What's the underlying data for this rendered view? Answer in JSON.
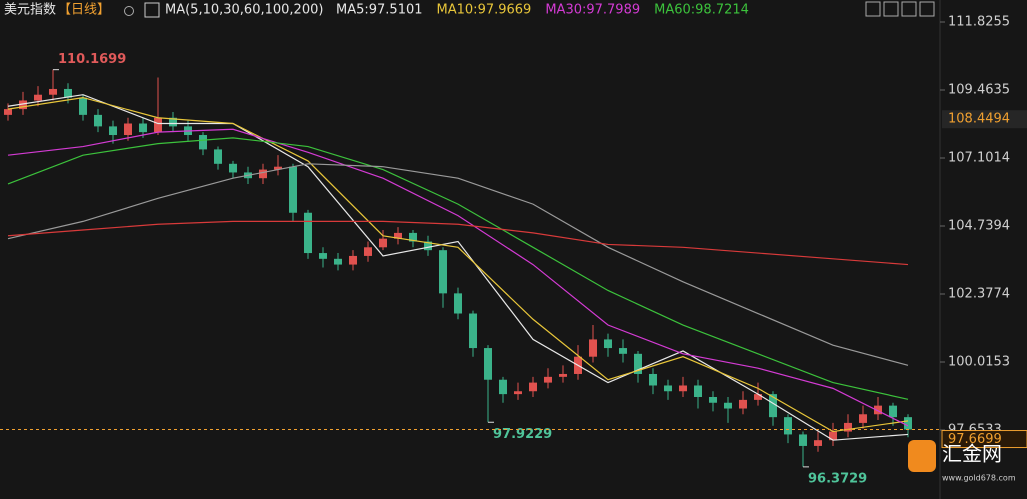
{
  "header": {
    "title": "美元指数",
    "period": "【日线】",
    "ma_params": "MA(5,10,30,60,100,200)"
  },
  "chart_data": {
    "type": "candlestick",
    "ylim": [
      95.257,
      112.59
    ],
    "yticks": [
      111.8255,
      109.4635,
      107.1014,
      104.7394,
      102.3774,
      100.0153,
      97.6533
    ],
    "up_color": "#e0524f",
    "down_color": "#3bb38a",
    "ohlc": [
      [
        108.6,
        109.0,
        108.4,
        108.8
      ],
      [
        108.8,
        109.4,
        108.6,
        109.1
      ],
      [
        109.1,
        109.6,
        108.9,
        109.3
      ],
      [
        109.3,
        110.1699,
        109.1,
        109.5
      ],
      [
        109.5,
        109.7,
        109.0,
        109.2
      ],
      [
        109.2,
        109.3,
        108.4,
        108.6
      ],
      [
        108.6,
        108.8,
        108.0,
        108.2
      ],
      [
        108.2,
        108.4,
        107.6,
        107.9
      ],
      [
        107.9,
        108.5,
        107.7,
        108.3
      ],
      [
        108.3,
        108.5,
        107.8,
        108.0
      ],
      [
        108.0,
        109.9,
        107.9,
        108.5
      ],
      [
        108.5,
        108.7,
        108.0,
        108.2
      ],
      [
        108.2,
        108.4,
        107.7,
        107.9
      ],
      [
        107.9,
        108.0,
        107.2,
        107.4
      ],
      [
        107.4,
        107.5,
        106.7,
        106.9
      ],
      [
        106.9,
        107.0,
        106.4,
        106.6
      ],
      [
        106.6,
        106.8,
        106.2,
        106.4
      ],
      [
        106.4,
        106.9,
        106.2,
        106.7
      ],
      [
        106.7,
        107.2,
        106.5,
        106.8
      ],
      [
        106.8,
        106.9,
        104.9,
        105.2
      ],
      [
        105.2,
        105.3,
        103.6,
        103.8
      ],
      [
        103.8,
        104.0,
        103.3,
        103.6
      ],
      [
        103.6,
        103.8,
        103.2,
        103.4
      ],
      [
        103.4,
        103.9,
        103.2,
        103.7
      ],
      [
        103.7,
        104.2,
        103.5,
        104.0
      ],
      [
        104.0,
        104.6,
        103.9,
        104.3
      ],
      [
        104.3,
        104.7,
        104.1,
        104.5
      ],
      [
        104.5,
        104.6,
        104.0,
        104.2
      ],
      [
        104.2,
        104.4,
        103.7,
        103.9
      ],
      [
        103.9,
        104.0,
        101.9,
        102.4
      ],
      [
        102.4,
        102.6,
        101.5,
        101.7
      ],
      [
        101.7,
        101.8,
        100.2,
        100.5
      ],
      [
        100.5,
        100.6,
        97.9229,
        99.4
      ],
      [
        99.4,
        99.5,
        98.6,
        98.9
      ],
      [
        98.9,
        99.3,
        98.7,
        99.0
      ],
      [
        99.0,
        99.5,
        98.8,
        99.3
      ],
      [
        99.3,
        99.8,
        99.1,
        99.5
      ],
      [
        99.5,
        99.9,
        99.3,
        99.6
      ],
      [
        99.6,
        100.6,
        99.4,
        100.2
      ],
      [
        100.2,
        101.3,
        100.0,
        100.8
      ],
      [
        100.8,
        101.0,
        100.2,
        100.5
      ],
      [
        100.5,
        100.8,
        100.0,
        100.3
      ],
      [
        100.3,
        100.4,
        99.3,
        99.6
      ],
      [
        99.6,
        99.8,
        98.9,
        99.2
      ],
      [
        99.2,
        99.4,
        98.7,
        99.0
      ],
      [
        99.0,
        99.5,
        98.8,
        99.2
      ],
      [
        99.2,
        99.4,
        98.4,
        98.8
      ],
      [
        98.8,
        99.0,
        98.3,
        98.6
      ],
      [
        98.6,
        98.8,
        97.9,
        98.4
      ],
      [
        98.4,
        99.0,
        98.2,
        98.7
      ],
      [
        98.7,
        99.3,
        98.5,
        98.9
      ],
      [
        98.9,
        99.0,
        97.8,
        98.1
      ],
      [
        98.1,
        98.2,
        97.2,
        97.5
      ],
      [
        97.5,
        97.6,
        96.3729,
        97.1
      ],
      [
        97.1,
        97.6,
        96.9,
        97.3
      ],
      [
        97.3,
        97.9,
        97.1,
        97.6
      ],
      [
        97.6,
        98.2,
        97.4,
        97.9
      ],
      [
        97.9,
        98.5,
        97.7,
        98.2
      ],
      [
        98.2,
        98.8,
        98.0,
        98.5
      ],
      [
        98.5,
        98.6,
        97.8,
        98.1
      ],
      [
        98.1,
        98.2,
        97.4,
        97.6699
      ]
    ],
    "annotated_points": [
      [
        3,
        1
      ],
      [
        32,
        2
      ],
      [
        53,
        2
      ]
    ],
    "marker_price": 108.4494,
    "ma_x": [
      0,
      5,
      10,
      15,
      20,
      25,
      30,
      35,
      40,
      45,
      50,
      55,
      60
    ],
    "series": [
      {
        "label": "MA5:97.5101",
        "color": "#e8e8e8",
        "values": [
          108.9,
          109.3,
          108.3,
          108.3,
          106.8,
          103.7,
          104.2,
          100.8,
          99.3,
          100.4,
          98.9,
          97.3,
          97.5
        ]
      },
      {
        "label": "MA10:97.9669",
        "color": "#e8c63a",
        "values": [
          108.8,
          109.2,
          108.5,
          108.3,
          107.0,
          104.4,
          104.0,
          101.5,
          99.4,
          100.2,
          99.1,
          97.6,
          97.97
        ]
      },
      {
        "label": "MA30:97.7989",
        "color": "#d43bd4",
        "values": [
          107.2,
          107.5,
          108.0,
          108.1,
          107.3,
          106.4,
          105.1,
          103.4,
          101.3,
          100.3,
          99.8,
          99.1,
          97.8
        ]
      },
      {
        "label": "MA60:98.7214",
        "color": "#3cc23c",
        "values": [
          106.2,
          107.2,
          107.6,
          107.8,
          107.5,
          106.7,
          105.5,
          104.0,
          102.5,
          101.3,
          100.3,
          99.3,
          98.72
        ]
      },
      {
        "color": "#9a9a9a",
        "values": [
          104.3,
          104.9,
          105.7,
          106.4,
          106.9,
          106.8,
          106.4,
          105.5,
          104.0,
          102.8,
          101.7,
          100.6,
          99.9
        ]
      },
      {
        "color": "#d83a3a",
        "values": [
          104.4,
          104.6,
          104.8,
          104.9,
          104.9,
          104.9,
          104.8,
          104.5,
          104.1,
          104.0,
          103.8,
          103.6,
          103.4
        ]
      }
    ]
  },
  "logo": {
    "name": "汇金网",
    "url": "www.gold678.com"
  }
}
